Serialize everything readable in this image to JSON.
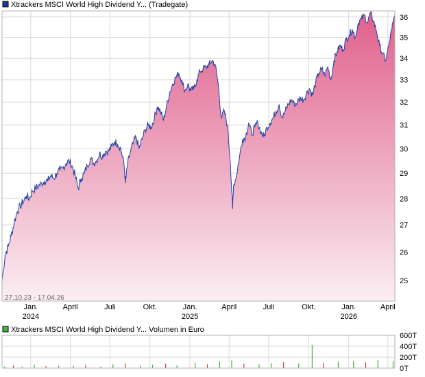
{
  "colors": {
    "price_line": "#1f3fa8",
    "price_fill_top": "#e0608c",
    "price_fill_bottom": "#fbeef3",
    "price_legend": "#1f3a93",
    "volume_legend": "#4caf50",
    "volume_up": "#3fae3f",
    "volume_down": "#d03a3a",
    "grid": "#d8d8d8",
    "frame": "#b0b0b0"
  },
  "chart_data": [
    {
      "type": "area",
      "title": "Xtrackers MSCI World High Dividend Y... (Tradegate)",
      "legend": {
        "label": "Xtrackers MSCI World High Dividend Y... (Tradegate)",
        "placement": "top-left"
      },
      "date_range_label": "27.10.23 - 17.04.26",
      "x_start": "2023-10-27",
      "x_end": "2026-04-17",
      "x_ticks": [
        {
          "date": "2024-01-01",
          "label": "Jan.",
          "year": "2024"
        },
        {
          "date": "2024-04-01",
          "label": "April",
          "year": ""
        },
        {
          "date": "2024-07-01",
          "label": "Juli",
          "year": ""
        },
        {
          "date": "2024-10-01",
          "label": "Okt.",
          "year": ""
        },
        {
          "date": "2025-01-01",
          "label": "Jan.",
          "year": "2025"
        },
        {
          "date": "2025-04-01",
          "label": "April",
          "year": ""
        },
        {
          "date": "2025-07-01",
          "label": "Juli",
          "year": ""
        },
        {
          "date": "2025-10-01",
          "label": "Okt.",
          "year": ""
        },
        {
          "date": "2026-01-01",
          "label": "Jan.",
          "year": "2026"
        },
        {
          "date": "2026-04-01",
          "label": "April",
          "year": ""
        }
      ],
      "y_ticks": [
        25,
        26,
        27,
        28,
        29,
        30,
        31,
        32,
        33,
        34,
        35,
        36
      ],
      "ylim": [
        24.3,
        36.3
      ],
      "y_scale": "log",
      "grid": true,
      "series": [
        {
          "points": [
            [
              "2023-10-27",
              25.0
            ],
            [
              "2023-11-03",
              25.9
            ],
            [
              "2023-11-10",
              26.2
            ],
            [
              "2023-11-17",
              26.6
            ],
            [
              "2023-11-24",
              27.1
            ],
            [
              "2023-12-01",
              27.5
            ],
            [
              "2023-12-08",
              27.7
            ],
            [
              "2023-12-15",
              27.9
            ],
            [
              "2023-12-22",
              28.1
            ],
            [
              "2023-12-29",
              28.0
            ],
            [
              "2024-01-05",
              28.3
            ],
            [
              "2024-01-12",
              28.4
            ],
            [
              "2024-01-19",
              28.5
            ],
            [
              "2024-01-26",
              28.6
            ],
            [
              "2024-02-02",
              28.7
            ],
            [
              "2024-02-09",
              28.7
            ],
            [
              "2024-02-16",
              28.9
            ],
            [
              "2024-02-23",
              28.8
            ],
            [
              "2024-03-01",
              29.0
            ],
            [
              "2024-03-08",
              29.1
            ],
            [
              "2024-03-15",
              29.2
            ],
            [
              "2024-03-22",
              29.4
            ],
            [
              "2024-03-29",
              29.5
            ],
            [
              "2024-04-05",
              29.3
            ],
            [
              "2024-04-12",
              28.9
            ],
            [
              "2024-04-19",
              28.4
            ],
            [
              "2024-04-26",
              28.8
            ],
            [
              "2024-05-03",
              29.0
            ],
            [
              "2024-05-10",
              29.3
            ],
            [
              "2024-05-17",
              29.6
            ],
            [
              "2024-05-24",
              29.4
            ],
            [
              "2024-05-31",
              29.5
            ],
            [
              "2024-06-07",
              29.8
            ],
            [
              "2024-06-14",
              29.7
            ],
            [
              "2024-06-21",
              29.9
            ],
            [
              "2024-06-28",
              29.9
            ],
            [
              "2024-07-05",
              30.1
            ],
            [
              "2024-07-12",
              30.3
            ],
            [
              "2024-07-19",
              30.2
            ],
            [
              "2024-07-26",
              30.0
            ],
            [
              "2024-08-02",
              29.4
            ],
            [
              "2024-08-06",
              28.6
            ],
            [
              "2024-08-09",
              29.2
            ],
            [
              "2024-08-16",
              29.8
            ],
            [
              "2024-08-23",
              30.2
            ],
            [
              "2024-08-30",
              30.5
            ],
            [
              "2024-09-06",
              30.0
            ],
            [
              "2024-09-13",
              30.4
            ],
            [
              "2024-09-20",
              30.8
            ],
            [
              "2024-09-27",
              31.0
            ],
            [
              "2024-10-04",
              30.9
            ],
            [
              "2024-10-11",
              31.3
            ],
            [
              "2024-10-18",
              31.8
            ],
            [
              "2024-10-25",
              31.6
            ],
            [
              "2024-11-01",
              31.2
            ],
            [
              "2024-11-08",
              31.8
            ],
            [
              "2024-11-15",
              32.4
            ],
            [
              "2024-11-22",
              32.8
            ],
            [
              "2024-11-29",
              33.1
            ],
            [
              "2024-12-06",
              33.3
            ],
            [
              "2024-12-13",
              33.0
            ],
            [
              "2024-12-20",
              32.5
            ],
            [
              "2024-12-27",
              32.8
            ],
            [
              "2025-01-03",
              32.5
            ],
            [
              "2025-01-10",
              32.6
            ],
            [
              "2025-01-17",
              33.0
            ],
            [
              "2025-01-24",
              33.4
            ],
            [
              "2025-01-31",
              33.5
            ],
            [
              "2025-02-07",
              33.6
            ],
            [
              "2025-02-14",
              33.7
            ],
            [
              "2025-02-21",
              33.9
            ],
            [
              "2025-02-28",
              33.7
            ],
            [
              "2025-03-07",
              32.8
            ],
            [
              "2025-03-14",
              31.3
            ],
            [
              "2025-03-21",
              31.6
            ],
            [
              "2025-03-28",
              31.0
            ],
            [
              "2025-04-04",
              29.4
            ],
            [
              "2025-04-09",
              27.6
            ],
            [
              "2025-04-11",
              28.5
            ],
            [
              "2025-04-18",
              28.9
            ],
            [
              "2025-04-25",
              29.7
            ],
            [
              "2025-05-02",
              30.4
            ],
            [
              "2025-05-09",
              30.5
            ],
            [
              "2025-05-16",
              31.1
            ],
            [
              "2025-05-23",
              30.6
            ],
            [
              "2025-05-30",
              30.9
            ],
            [
              "2025-06-06",
              31.1
            ],
            [
              "2025-06-13",
              30.7
            ],
            [
              "2025-06-20",
              30.5
            ],
            [
              "2025-06-27",
              30.9
            ],
            [
              "2025-07-04",
              31.1
            ],
            [
              "2025-07-11",
              31.3
            ],
            [
              "2025-07-18",
              31.6
            ],
            [
              "2025-07-25",
              31.9
            ],
            [
              "2025-08-01",
              31.3
            ],
            [
              "2025-08-08",
              31.6
            ],
            [
              "2025-08-15",
              31.9
            ],
            [
              "2025-08-22",
              32.1
            ],
            [
              "2025-08-29",
              31.9
            ],
            [
              "2025-09-05",
              32.0
            ],
            [
              "2025-09-12",
              32.2
            ],
            [
              "2025-09-19",
              32.1
            ],
            [
              "2025-09-26",
              32.4
            ],
            [
              "2025-10-03",
              32.6
            ],
            [
              "2025-10-10",
              32.3
            ],
            [
              "2025-10-17",
              32.9
            ],
            [
              "2025-10-24",
              33.3
            ],
            [
              "2025-10-31",
              33.5
            ],
            [
              "2025-11-07",
              33.2
            ],
            [
              "2025-11-14",
              33.6
            ],
            [
              "2025-11-21",
              33.0
            ],
            [
              "2025-11-28",
              33.9
            ],
            [
              "2025-12-05",
              34.3
            ],
            [
              "2025-12-12",
              34.6
            ],
            [
              "2025-12-19",
              34.4
            ],
            [
              "2025-12-26",
              34.9
            ],
            [
              "2026-01-02",
              35.1
            ],
            [
              "2026-01-09",
              35.4
            ],
            [
              "2026-01-16",
              35.0
            ],
            [
              "2026-01-23",
              35.7
            ],
            [
              "2026-01-30",
              35.9
            ],
            [
              "2026-02-06",
              36.1
            ],
            [
              "2026-02-13",
              35.7
            ],
            [
              "2026-02-20",
              36.2
            ],
            [
              "2026-02-27",
              35.8
            ],
            [
              "2026-03-06",
              35.3
            ],
            [
              "2026-03-13",
              34.6
            ],
            [
              "2026-03-20",
              34.2
            ],
            [
              "2026-03-27",
              33.9
            ],
            [
              "2026-04-03",
              34.6
            ],
            [
              "2026-04-10",
              35.4
            ],
            [
              "2026-04-17",
              36.1
            ]
          ]
        }
      ]
    },
    {
      "type": "bar",
      "title": "Xtrackers MSCI World High Dividend Y... Volumen in Euro",
      "legend": {
        "label": "Xtrackers MSCI World High Dividend Y... Volumen in Euro",
        "placement": "top-left"
      },
      "y_ticks": [
        {
          "value": 0,
          "label": "0T"
        },
        {
          "value": 200,
          "label": "200T"
        },
        {
          "value": 400,
          "label": "400T"
        },
        {
          "value": 600,
          "label": "600T"
        }
      ],
      "ylim": [
        0,
        600
      ],
      "y_unit": "T",
      "grid": true,
      "series": [
        {
          "name": "Volumen",
          "bars": [
            [
              "2023-11-02",
              30
            ],
            [
              "2023-11-22",
              50
            ],
            [
              "2023-12-12",
              25
            ],
            [
              "2024-01-09",
              60
            ],
            [
              "2024-02-05",
              35
            ],
            [
              "2024-03-05",
              45
            ],
            [
              "2024-04-08",
              40
            ],
            [
              "2024-05-06",
              55
            ],
            [
              "2024-06-10",
              30
            ],
            [
              "2024-07-08",
              70
            ],
            [
              "2024-08-05",
              90
            ],
            [
              "2024-09-09",
              45
            ],
            [
              "2024-10-07",
              60
            ],
            [
              "2024-11-06",
              80
            ],
            [
              "2024-12-02",
              50
            ],
            [
              "2025-01-13",
              95
            ],
            [
              "2025-02-10",
              70
            ],
            [
              "2025-03-10",
              120
            ],
            [
              "2025-04-07",
              140
            ],
            [
              "2025-05-05",
              80
            ],
            [
              "2025-06-09",
              70
            ],
            [
              "2025-07-07",
              90
            ],
            [
              "2025-08-04",
              110
            ],
            [
              "2025-09-08",
              85
            ],
            [
              "2025-10-09",
              420
            ],
            [
              "2025-11-04",
              100
            ],
            [
              "2025-12-08",
              120
            ],
            [
              "2026-01-12",
              130
            ],
            [
              "2026-02-09",
              110
            ],
            [
              "2026-03-09",
              150
            ],
            [
              "2026-04-13",
              120
            ]
          ]
        }
      ]
    }
  ]
}
